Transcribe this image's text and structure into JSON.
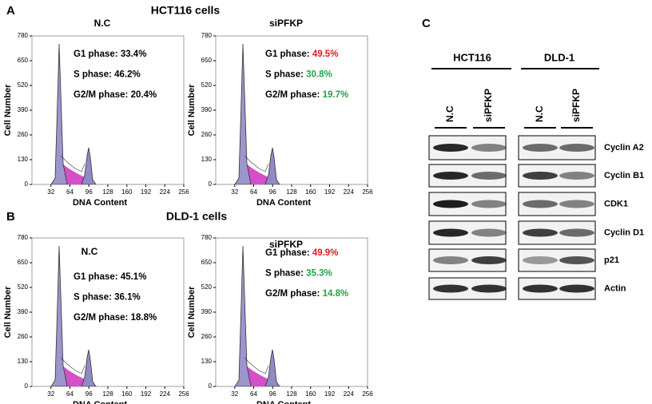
{
  "panel_a": {
    "label": "A",
    "title": "HCT116 cells",
    "plots": [
      {
        "title": "N.C",
        "phases": [
          {
            "name": "G1 phase:",
            "value": "33.4%",
            "color": "#000000"
          },
          {
            "name": "S phase:",
            "value": "46.2%",
            "color": "#000000"
          },
          {
            "name": "G2/M phase:",
            "value": "20.4%",
            "color": "#000000"
          }
        ]
      },
      {
        "title": "siPFKP",
        "phases": [
          {
            "name": "G1 phase:",
            "value": "49.5%",
            "color": "#e0191f"
          },
          {
            "name": "S phase:",
            "value": "30.8%",
            "color": "#1fa64a"
          },
          {
            "name": "G2/M phase:",
            "value": "19.7%",
            "color": "#1fa64a"
          }
        ]
      }
    ]
  },
  "panel_b": {
    "label": "B",
    "title": "DLD-1 cells",
    "plots": [
      {
        "title": "N.C",
        "phases": [
          {
            "name": "G1 phase:",
            "value": "45.1%",
            "color": "#000000"
          },
          {
            "name": "S phase:",
            "value": "36.1%",
            "color": "#000000"
          },
          {
            "name": "G2/M phase:",
            "value": "18.8%",
            "color": "#000000"
          }
        ]
      },
      {
        "title": "siPFKP",
        "phases": [
          {
            "name": "G1 phase:",
            "value": "49.9%",
            "color": "#e0191f"
          },
          {
            "name": "S phase:",
            "value": "35.3%",
            "color": "#1fa64a"
          },
          {
            "name": "G2/M phase:",
            "value": "14.8%",
            "color": "#1fa64a"
          }
        ]
      }
    ]
  },
  "axes": {
    "xlabel": "DNA Content",
    "ylabel": "Cell Number",
    "xlim": [
      0,
      256
    ],
    "ylim": [
      0,
      780
    ],
    "xticks": [
      32,
      64,
      96,
      128,
      160,
      192,
      224,
      256
    ],
    "yticks": [
      0,
      130,
      260,
      390,
      520,
      650,
      780
    ]
  },
  "panel_c": {
    "label": "C",
    "groups": [
      "HCT116",
      "DLD-1"
    ],
    "lanes": [
      "N.C",
      "siPFKP",
      "N.C",
      "siPFKP"
    ],
    "proteins": [
      "Cyclin A2",
      "Cyclin  B1",
      "CDK1",
      "Cyclin D1",
      "p21",
      "Actin"
    ]
  }
}
